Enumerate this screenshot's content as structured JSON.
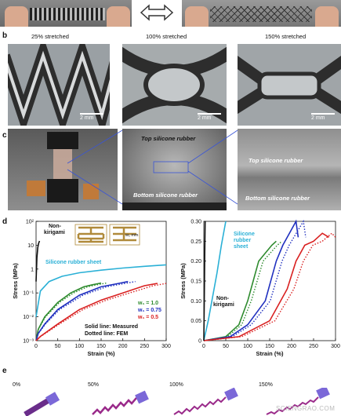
{
  "panel_b": {
    "label": "b",
    "captions": [
      "25% stretched",
      "100% stretched",
      "150% stretched"
    ],
    "scalebar": "2 mm"
  },
  "panel_c": {
    "label": "c",
    "sem_top": "Top silicone rubber",
    "sem_bottom": "Bottom silicone rubber",
    "zoom_top": "Top silicone rubber",
    "zoom_bottom": "Bottom silicone rubber"
  },
  "panel_d": {
    "label": "d",
    "left_chart": {
      "ylabel": "Stress (MPa)",
      "xlabel": "Strain (%)",
      "yticks": [
        "10²",
        "10",
        "1",
        "10⁻¹",
        "10⁻²",
        "10⁻³"
      ],
      "xticks": [
        "0",
        "50",
        "100",
        "150",
        "200",
        "250",
        "300"
      ],
      "annot_nonkirigami": [
        "Non-",
        "kirigami"
      ],
      "annot_silicone": "Silicone rubber sheet",
      "legend": [
        "w₁ = 1.0",
        "w₁ = 0.75",
        "w₁ = 0.5"
      ],
      "note1": "Solid line: Measured",
      "note2": "Dotted line: FEM",
      "inset_label": "w₁ mm"
    },
    "right_chart": {
      "ylabel": "Stress (MPa)",
      "xlabel": "Strain (%)",
      "yticks": [
        "0",
        "0.05",
        "0.10",
        "0.15",
        "0.20",
        "0.25",
        "0.30"
      ],
      "xticks": [
        "0",
        "50",
        "100",
        "150",
        "200",
        "250",
        "300"
      ],
      "annot_silicone": [
        "Silicone",
        "rubber",
        "sheet"
      ],
      "annot_nonkirigami": [
        "Non-",
        "kirigami"
      ]
    }
  },
  "panel_e": {
    "label": "e",
    "strains": [
      "0%",
      "50%",
      "100%",
      "150%"
    ]
  },
  "watermark": "SCIENGRAO.COM",
  "chart_data": [
    {
      "type": "line",
      "yscale": "log",
      "xlabel": "Strain (%)",
      "ylabel": "Stress (MPa)",
      "xlim": [
        0,
        300
      ],
      "ylim": [
        0.001,
        100
      ],
      "series": [
        {
          "name": "Silicone rubber sheet",
          "color": "#2ab0d6",
          "x": [
            0,
            10,
            30,
            60,
            100,
            150,
            200,
            250,
            300
          ],
          "y": [
            0.01,
            0.12,
            0.3,
            0.5,
            0.7,
            0.9,
            1.1,
            1.3,
            1.5
          ]
        },
        {
          "name": "w₁ = 1.0",
          "color": "#2e8b2e",
          "x": [
            0,
            5,
            20,
            50,
            80,
            110,
            130,
            150
          ],
          "y": [
            0.001,
            0.003,
            0.01,
            0.04,
            0.1,
            0.18,
            0.22,
            0.26
          ]
        },
        {
          "name": "w₁ = 0.75",
          "color": "#1f2fbf",
          "x": [
            0,
            5,
            20,
            50,
            100,
            150,
            190,
            212
          ],
          "y": [
            0.001,
            0.002,
            0.005,
            0.02,
            0.08,
            0.18,
            0.25,
            0.3
          ]
        },
        {
          "name": "w₁ = 0.5",
          "color": "#d92020",
          "x": [
            0,
            10,
            50,
            100,
            150,
            200,
            250,
            280
          ],
          "y": [
            0.001,
            0.0015,
            0.005,
            0.02,
            0.05,
            0.1,
            0.2,
            0.25
          ]
        },
        {
          "name": "Non-kirigami",
          "color": "#111111",
          "x": [
            0,
            2,
            4,
            6,
            8
          ],
          "y": [
            0.3,
            3,
            8,
            12,
            15
          ]
        }
      ]
    },
    {
      "type": "line",
      "xlabel": "Strain (%)",
      "ylabel": "Stress (MPa)",
      "xlim": [
        0,
        300
      ],
      "ylim": [
        0,
        0.3
      ],
      "series": [
        {
          "name": "Silicone rubber sheet",
          "color": "#2ab0d6",
          "x": [
            0,
            10,
            20,
            30,
            40,
            50
          ],
          "y": [
            0,
            0.05,
            0.11,
            0.17,
            0.24,
            0.3
          ]
        },
        {
          "name": "w₁ = 1.0",
          "color": "#2e8b2e",
          "x": [
            0,
            50,
            80,
            100,
            115,
            125,
            140,
            155,
            165
          ],
          "y": [
            0,
            0.01,
            0.04,
            0.1,
            0.16,
            0.2,
            0.22,
            0.24,
            0.25
          ]
        },
        {
          "name": "w₁ = 0.75",
          "color": "#1f2fbf",
          "x": [
            0,
            60,
            100,
            140,
            165,
            180,
            195,
            210,
            215
          ],
          "y": [
            0,
            0.01,
            0.04,
            0.1,
            0.2,
            0.24,
            0.27,
            0.3,
            0.26
          ]
        },
        {
          "name": "w₁ = 0.5",
          "color": "#d92020",
          "x": [
            0,
            80,
            150,
            190,
            210,
            230,
            250,
            270,
            285
          ],
          "y": [
            0,
            0.01,
            0.05,
            0.13,
            0.2,
            0.24,
            0.25,
            0.27,
            0.26
          ]
        },
        {
          "name": "Non-kirigami",
          "color": "#111111",
          "x": [
            0,
            1,
            2,
            3
          ],
          "y": [
            0,
            0.1,
            0.2,
            0.3
          ]
        }
      ]
    }
  ]
}
